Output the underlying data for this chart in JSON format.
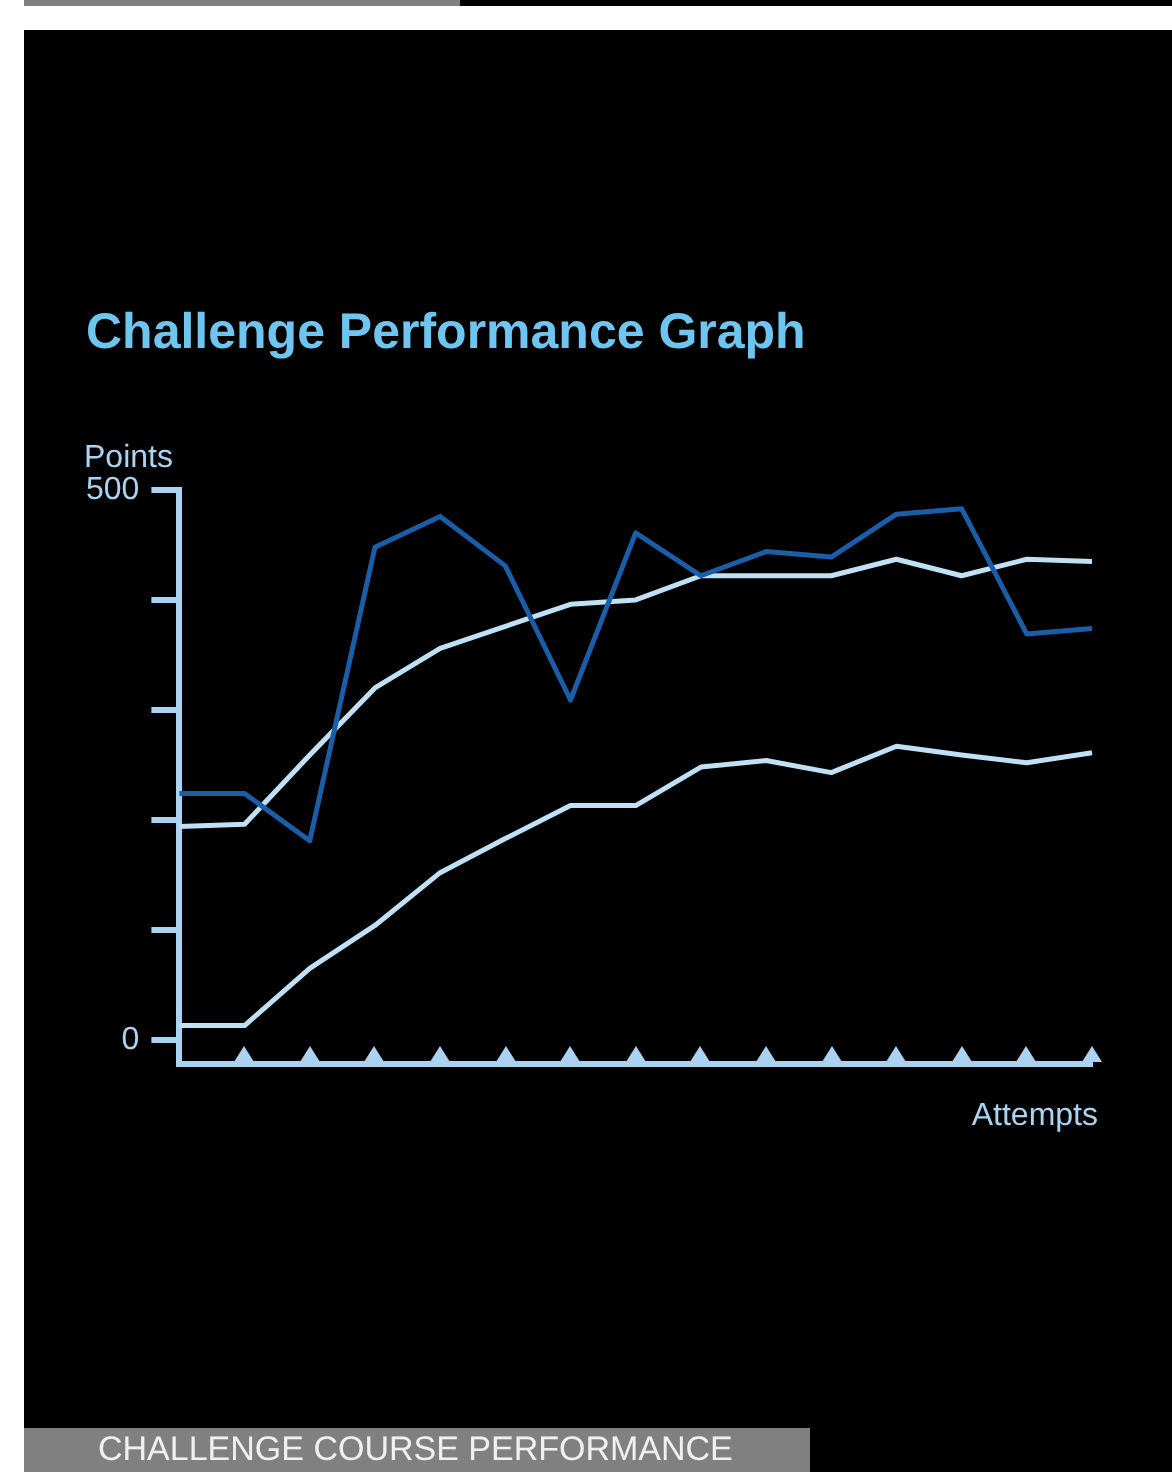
{
  "chart_data": {
    "type": "line",
    "title": "Challenge Performance Graph",
    "ylabel": "Points",
    "xlabel": "Attempts",
    "categories": [
      null,
      null,
      null,
      null,
      null,
      null,
      null,
      null,
      null,
      null,
      null,
      null,
      null,
      null,
      null
    ],
    "series": [
      {
        "color": "#1a5ea8",
        "values": [
          224,
          224,
          181,
          448,
          476,
          431,
          309,
          461,
          422,
          444,
          439,
          478,
          483,
          369,
          374
        ]
      },
      {
        "color": "#bfe0f5",
        "values": [
          194,
          196,
          259,
          320,
          356,
          376,
          396,
          400,
          422,
          422,
          422,
          437,
          422,
          437,
          435
        ]
      },
      {
        "color": "#bfe0f5",
        "values": [
          13,
          13,
          65,
          104,
          152,
          183,
          213,
          213,
          248,
          254,
          243,
          267,
          259,
          252,
          261
        ]
      }
    ],
    "ylim": [
      -22,
      500
    ],
    "yticks": [
      {
        "value": 0,
        "label": "0"
      },
      {
        "value": 100,
        "label": null
      },
      {
        "value": 200,
        "label": null
      },
      {
        "value": 300,
        "label": null
      },
      {
        "value": 400,
        "label": null
      },
      {
        "value": 500,
        "label": "500"
      }
    ],
    "marker": "none",
    "line_style": "solid",
    "legend": false,
    "annotations": [
      "CHALLENGE COURSE PERFORMANCE"
    ]
  }
}
